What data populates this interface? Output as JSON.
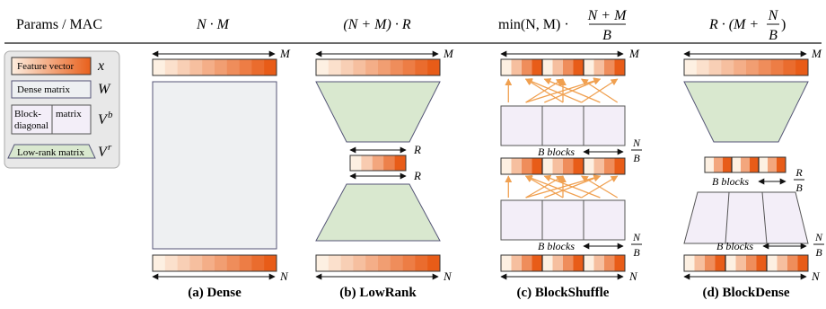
{
  "header": {
    "label": "Params / MAC",
    "dense": "N · M",
    "lowrank": "(N + M) · R",
    "blockshuffle_pre": "min(N, M) ·",
    "blockshuffle_num": "N + M",
    "blockshuffle_den": "B",
    "blockdense_pre": "R · (M +",
    "blockdense_num": "N",
    "blockdense_den": "B",
    "blockdense_post": ")"
  },
  "legend": {
    "feature_vector": "Feature vector",
    "feature_symbol": "x",
    "dense_matrix": "Dense matrix",
    "dense_symbol": "W",
    "block_label_a": "Block-",
    "block_label_b": "diagonal",
    "block_label_c": "matrix",
    "block_symbol": "V",
    "block_sup": "b",
    "lowrank_matrix": "Low-rank matrix",
    "lowrank_symbol": "V",
    "lowrank_sup": "r"
  },
  "dims": {
    "M": "M",
    "N": "N",
    "R": "R",
    "B": "B",
    "blocks": "B blocks",
    "frac_num": "N",
    "frac_den": "B",
    "frac_num_R": "R",
    "frac_den_R": "B"
  },
  "captions": {
    "a": "(a) Dense",
    "b": "(b) LowRank",
    "c": "(c) BlockShuffle",
    "d": "(d) BlockDense"
  },
  "colors": {
    "green": "#d9e8cf",
    "gray": "#eef0f2",
    "lavender": "#f3eef8",
    "orange_arrow": "#f0a050"
  }
}
